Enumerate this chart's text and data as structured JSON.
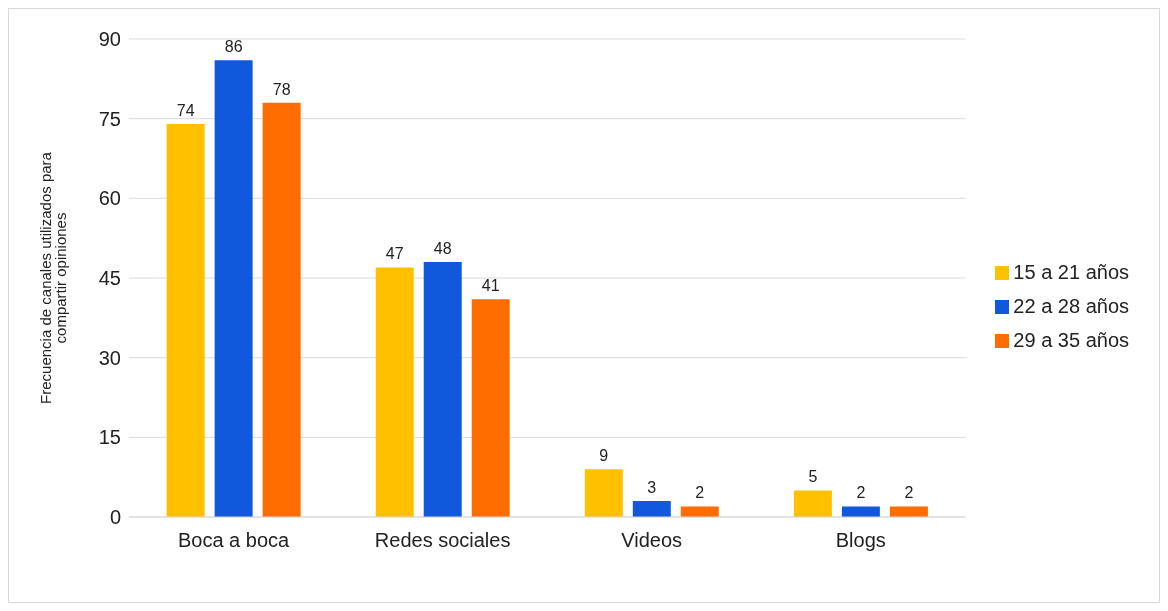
{
  "chart_data": {
    "type": "bar",
    "ylabel": "Frecuencia de canales utilizados para compartir opiniones",
    "categories": [
      "Boca a boca",
      "Redes sociales",
      "Videos",
      "Blogs"
    ],
    "series": [
      {
        "name": "15 a 21 años",
        "color": "#ffc000",
        "values": [
          74,
          47,
          9,
          5
        ]
      },
      {
        "name": "22 a 28 años",
        "color": "#1159dc",
        "values": [
          86,
          48,
          3,
          2
        ]
      },
      {
        "name": "29 a 35 años",
        "color": "#ff6d00",
        "values": [
          78,
          41,
          2,
          2
        ]
      }
    ],
    "ylim": [
      0,
      90
    ],
    "yticks": [
      0,
      15,
      30,
      45,
      60,
      75,
      90
    ],
    "grid": "y",
    "legend": "right",
    "data_labels": true
  }
}
